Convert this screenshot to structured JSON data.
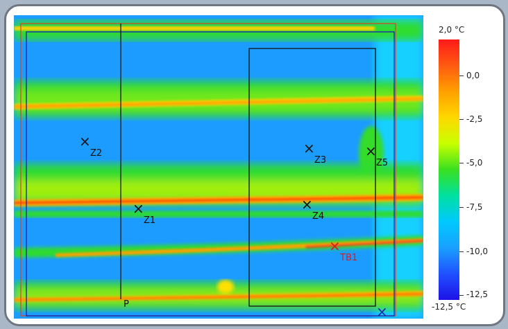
{
  "scale": {
    "max_label": "2,0 °C",
    "min_label": "-12,5 °C",
    "ticks": [
      "0,0",
      "-2,5",
      "-5,0",
      "-7,5",
      "-10,0",
      "-12,5"
    ]
  },
  "markers": [
    {
      "id": "Z2",
      "label": "Z2",
      "color": "black"
    },
    {
      "id": "Z3",
      "label": "Z3",
      "color": "black"
    },
    {
      "id": "Z5",
      "label": "Z5",
      "color": "black"
    },
    {
      "id": "Z1",
      "label": "Z1",
      "color": "black"
    },
    {
      "id": "Z4",
      "label": "Z4",
      "color": "black"
    },
    {
      "id": "TB1",
      "label": "TB1",
      "color": "red"
    }
  ],
  "line_label": "P",
  "colors": {
    "cold_blue": "#1e7cff",
    "cyan": "#19c3ff",
    "green": "#2fdc2f",
    "yellow": "#ffe000",
    "orange": "#ff7a00",
    "red": "#ff1a1a",
    "marker_red": "#d81b1b"
  }
}
